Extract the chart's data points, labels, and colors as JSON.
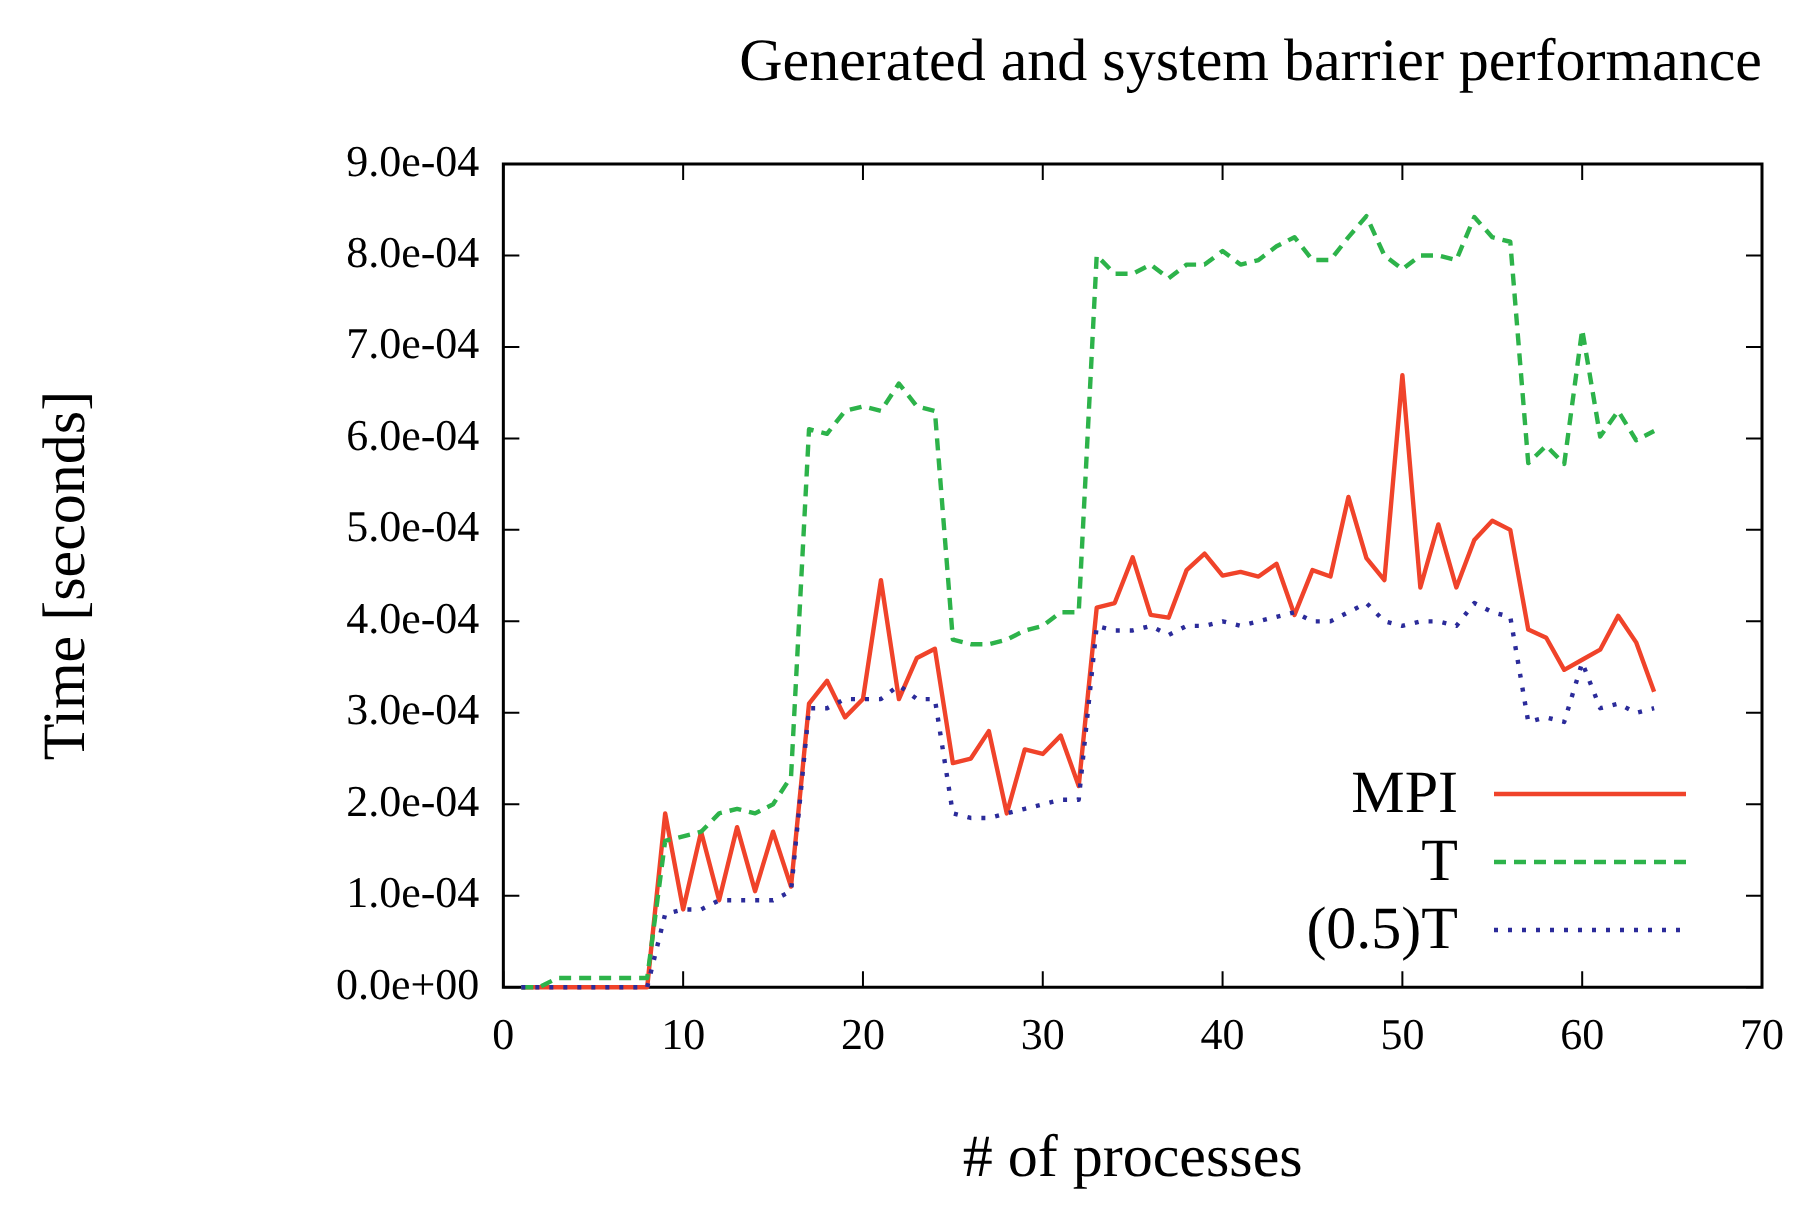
{
  "chart_data": {
    "type": "line",
    "title": "Generated and system barrier performance",
    "xlabel": "# of processes",
    "ylabel": "Time [seconds]",
    "x": [
      1,
      2,
      3,
      4,
      5,
      6,
      7,
      8,
      9,
      10,
      11,
      12,
      13,
      14,
      15,
      16,
      17,
      18,
      19,
      20,
      21,
      22,
      23,
      24,
      25,
      26,
      27,
      28,
      29,
      30,
      31,
      32,
      33,
      34,
      35,
      36,
      37,
      38,
      39,
      40,
      41,
      42,
      43,
      44,
      45,
      46,
      47,
      48,
      49,
      50,
      51,
      52,
      53,
      54,
      55,
      56,
      57,
      58,
      59,
      60,
      61,
      62,
      63,
      64
    ],
    "xlim": [
      0,
      70
    ],
    "xticks": [
      0,
      10,
      20,
      30,
      40,
      50,
      60,
      70
    ],
    "ylim": [
      0,
      0.0009
    ],
    "yticks": [
      {
        "value": 0,
        "label": "0.0e+00"
      },
      {
        "value": 0.0001,
        "label": "1.0e-04"
      },
      {
        "value": 0.0002,
        "label": "2.0e-04"
      },
      {
        "value": 0.0003,
        "label": "3.0e-04"
      },
      {
        "value": 0.0004,
        "label": "4.0e-04"
      },
      {
        "value": 0.0005,
        "label": "5.0e-04"
      },
      {
        "value": 0.0006,
        "label": "6.0e-04"
      },
      {
        "value": 0.0007,
        "label": "7.0e-04"
      },
      {
        "value": 0.0008,
        "label": "8.0e-04"
      },
      {
        "value": 0.0009,
        "label": "9.0e-04"
      }
    ],
    "grid": false,
    "legend": "bottom right",
    "marker": "none",
    "series": [
      {
        "name": "MPI",
        "color": "#f0432a",
        "line_style": "solid",
        "values": [
          0,
          0,
          0,
          0,
          0,
          0,
          0,
          0,
          0.00019,
          8.5e-05,
          0.00017,
          9.5e-05,
          0.000175,
          0.000105,
          0.00017,
          0.00011,
          0.00031,
          0.000335,
          0.000295,
          0.000315,
          0.000445,
          0.000315,
          0.00036,
          0.00037,
          0.000245,
          0.00025,
          0.00028,
          0.00019,
          0.00026,
          0.000255,
          0.000275,
          0.00022,
          0.000415,
          0.00042,
          0.00047,
          0.000407,
          0.000404,
          0.000456,
          0.000474,
          0.00045,
          0.000454,
          0.000449,
          0.000463,
          0.000407,
          0.000456,
          0.000449,
          0.000536,
          0.000469,
          0.000445,
          0.000669,
          0.000437,
          0.000506,
          0.000437,
          0.000489,
          0.00051,
          0.0005,
          0.000391,
          0.000382,
          0.000347,
          0.000358,
          0.000369,
          0.000406,
          0.000377,
          0.000323
        ]
      },
      {
        "name": "T",
        "color": "#2db34a",
        "line_style": "dashed",
        "values": [
          0,
          0,
          1e-05,
          1e-05,
          1e-05,
          1e-05,
          1e-05,
          1e-05,
          0.00016,
          0.000165,
          0.00017,
          0.00019,
          0.000195,
          0.00019,
          0.0002,
          0.00023,
          0.00061,
          0.000605,
          0.00063,
          0.000635,
          0.00063,
          0.00066,
          0.000635,
          0.00063,
          0.00038,
          0.000375,
          0.000375,
          0.00038,
          0.00039,
          0.000395,
          0.00041,
          0.00041,
          0.0008,
          0.00078,
          0.00078,
          0.00079,
          0.000775,
          0.00079,
          0.00079,
          0.000805,
          0.00079,
          0.000795,
          0.00081,
          0.00082,
          0.000795,
          0.000795,
          0.00082,
          0.000843,
          0.0008,
          0.000785,
          0.0008,
          0.0008,
          0.000795,
          0.000842,
          0.00082,
          0.000815,
          0.000573,
          0.000592,
          0.000572,
          0.000719,
          0.000602,
          0.00063,
          0.000598,
          0.000608
        ]
      },
      {
        "name": "(0.5)T",
        "color": "#2b2b9a",
        "line_style": "dotted",
        "values": [
          0,
          0,
          0,
          0,
          0,
          0,
          0,
          0,
          8e-05,
          8.5e-05,
          8.5e-05,
          9.5e-05,
          9.5e-05,
          9.5e-05,
          9.5e-05,
          0.000105,
          0.000305,
          0.000305,
          0.000315,
          0.000315,
          0.000315,
          0.00033,
          0.000315,
          0.000315,
          0.00019,
          0.000185,
          0.000185,
          0.00019,
          0.000195,
          0.0002,
          0.000205,
          0.000205,
          0.000395,
          0.00039,
          0.00039,
          0.000395,
          0.000385,
          0.000395,
          0.000395,
          0.0004,
          0.000395,
          0.0004,
          0.000405,
          0.00041,
          0.0004,
          0.0004,
          0.00041,
          0.00042,
          0.0004,
          0.000395,
          0.0004,
          0.0004,
          0.000395,
          0.00042,
          0.00041,
          0.000405,
          0.00029,
          0.000295,
          0.00029,
          0.000355,
          0.000305,
          0.00031,
          0.0003,
          0.000305
        ]
      }
    ]
  }
}
